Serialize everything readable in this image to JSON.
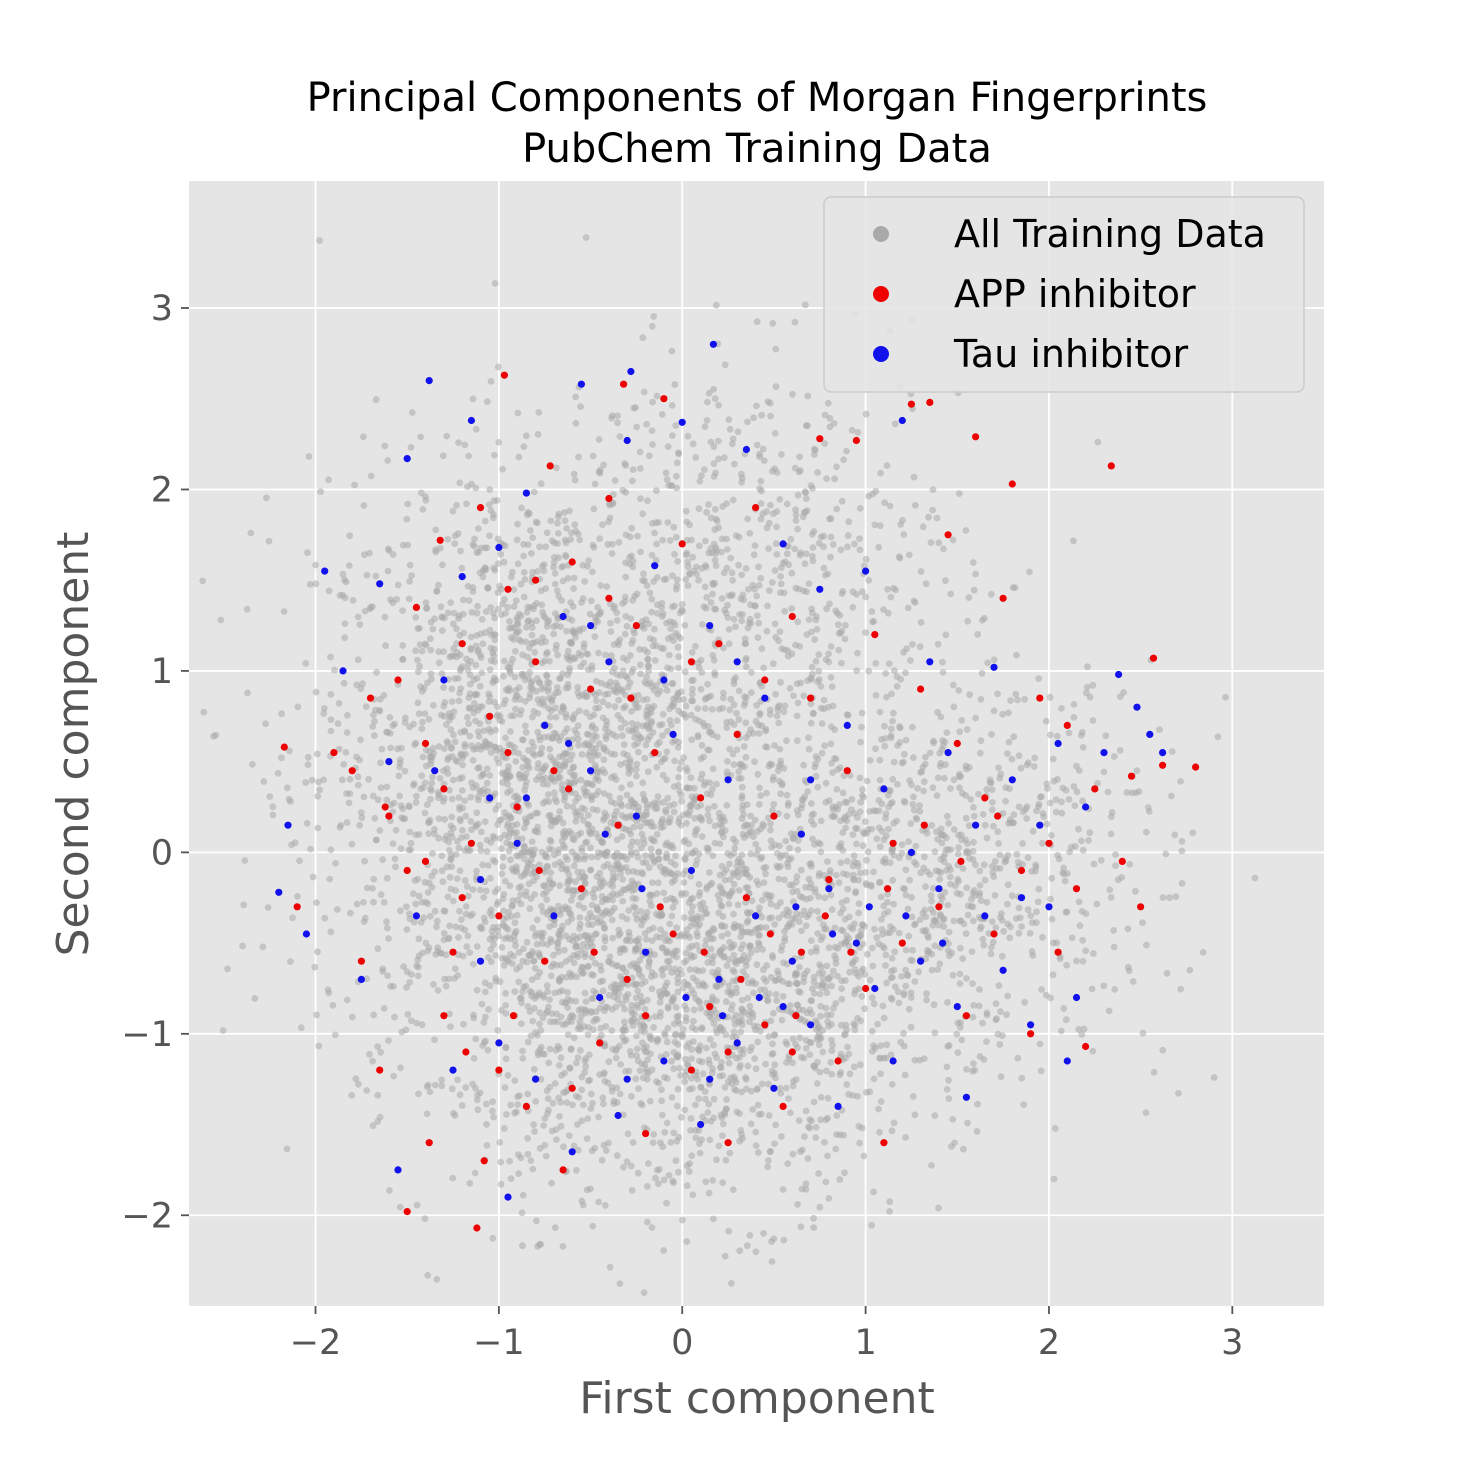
{
  "chart_data": {
    "type": "scatter",
    "title": [
      "Principal Components of Morgan Fingerprints",
      "PubChem Training Data"
    ],
    "xlabel": "First component",
    "ylabel": "Second component",
    "xlim": [
      -2.69,
      3.5
    ],
    "ylim": [
      -2.5,
      3.7
    ],
    "x_ticks": [
      -2,
      -1,
      0,
      1,
      2,
      3
    ],
    "y_ticks": [
      -2,
      -1,
      0,
      1,
      2,
      3
    ],
    "x_tick_labels": [
      "−2",
      "−1",
      "0",
      "1",
      "2",
      "3"
    ],
    "y_tick_labels": [
      "−2",
      "−1",
      "0",
      "1",
      "2",
      "3"
    ],
    "grid": true,
    "background": "#e5e5e5",
    "legend": {
      "placement": "upper right",
      "entries": [
        "All Training Data",
        "APP inhibitor",
        "Tau inhibitor"
      ]
    },
    "series": [
      {
        "name": "All Training Data",
        "color": "#a9a9a9",
        "distribution": "dense cloud, approx. 60000 points",
        "clusters": [
          {
            "center": [
              -0.75,
              0.45
            ],
            "spread": [
              0.62,
              0.82
            ],
            "weight": 0.45
          },
          {
            "center": [
              0.05,
              -0.8
            ],
            "spread": [
              0.62,
              0.58
            ],
            "weight": 0.28
          },
          {
            "center": [
              1.35,
              -0.1
            ],
            "spread": [
              0.65,
              0.55
            ],
            "weight": 0.17
          },
          {
            "center": [
              0.45,
              1.6
            ],
            "spread": [
              0.55,
              0.55
            ],
            "weight": 0.1
          }
        ]
      },
      {
        "name": "APP inhibitor",
        "color": "#ee0000",
        "points": [
          [
            -2.17,
            0.58
          ],
          [
            -2.1,
            -0.3
          ],
          [
            -1.9,
            0.55
          ],
          [
            -1.8,
            0.45
          ],
          [
            -1.75,
            -0.6
          ],
          [
            -1.7,
            0.85
          ],
          [
            -1.65,
            -1.2
          ],
          [
            -1.6,
            0.2
          ],
          [
            -1.55,
            0.95
          ],
          [
            -1.5,
            -0.1
          ],
          [
            -1.45,
            1.35
          ],
          [
            -1.4,
            0.6
          ],
          [
            -1.38,
            -1.6
          ],
          [
            -1.32,
            1.72
          ],
          [
            -1.3,
            0.35
          ],
          [
            -1.25,
            -0.55
          ],
          [
            -1.2,
            1.15
          ],
          [
            -1.18,
            -1.1
          ],
          [
            -1.15,
            0.05
          ],
          [
            -1.1,
            1.9
          ],
          [
            -1.08,
            -1.7
          ],
          [
            -1.05,
            0.75
          ],
          [
            -1.0,
            -0.35
          ],
          [
            -0.97,
            2.63
          ],
          [
            -0.95,
            1.45
          ],
          [
            -0.92,
            -0.9
          ],
          [
            -0.9,
            0.25
          ],
          [
            -0.85,
            -1.4
          ],
          [
            -0.8,
            1.05
          ],
          [
            -0.75,
            -0.6
          ],
          [
            -0.72,
            2.13
          ],
          [
            -0.7,
            0.45
          ],
          [
            -0.65,
            -1.75
          ],
          [
            -0.6,
            1.6
          ],
          [
            -0.55,
            -0.2
          ],
          [
            -0.5,
            0.9
          ],
          [
            -0.45,
            -1.05
          ],
          [
            -0.4,
            1.95
          ],
          [
            -0.35,
            0.15
          ],
          [
            -0.32,
            2.58
          ],
          [
            -0.3,
            -0.7
          ],
          [
            -0.25,
            1.25
          ],
          [
            -0.2,
            -1.55
          ],
          [
            -0.15,
            0.55
          ],
          [
            -0.1,
            2.5
          ],
          [
            -0.05,
            -0.45
          ],
          [
            0.0,
            1.7
          ],
          [
            0.05,
            -1.2
          ],
          [
            0.1,
            0.3
          ],
          [
            0.15,
            -0.85
          ],
          [
            0.2,
            1.15
          ],
          [
            0.25,
            -1.6
          ],
          [
            0.3,
            0.65
          ],
          [
            0.35,
            -0.25
          ],
          [
            0.4,
            1.9
          ],
          [
            0.45,
            -0.95
          ],
          [
            0.5,
            0.2
          ],
          [
            0.55,
            -1.4
          ],
          [
            0.6,
            1.3
          ],
          [
            0.65,
            -0.55
          ],
          [
            0.7,
            0.85
          ],
          [
            0.75,
            2.28
          ],
          [
            0.8,
            -0.15
          ],
          [
            0.85,
            -1.15
          ],
          [
            0.9,
            0.45
          ],
          [
            0.95,
            2.27
          ],
          [
            1.0,
            -0.75
          ],
          [
            1.05,
            1.2
          ],
          [
            1.1,
            -1.6
          ],
          [
            1.15,
            0.05
          ],
          [
            1.2,
            -0.5
          ],
          [
            1.25,
            2.47
          ],
          [
            1.3,
            0.9
          ],
          [
            1.35,
            2.48
          ],
          [
            1.4,
            -0.3
          ],
          [
            1.45,
            1.75
          ],
          [
            1.5,
            0.6
          ],
          [
            1.55,
            -0.9
          ],
          [
            1.6,
            2.29
          ],
          [
            1.65,
            0.3
          ],
          [
            1.7,
            -0.45
          ],
          [
            1.75,
            1.4
          ],
          [
            1.8,
            2.03
          ],
          [
            1.85,
            -0.1
          ],
          [
            1.9,
            -1.0
          ],
          [
            1.95,
            0.85
          ],
          [
            2.0,
            0.05
          ],
          [
            2.05,
            -0.55
          ],
          [
            2.1,
            0.7
          ],
          [
            2.15,
            -0.2
          ],
          [
            2.2,
            -1.07
          ],
          [
            2.25,
            0.35
          ],
          [
            2.34,
            2.13
          ],
          [
            2.4,
            -0.05
          ],
          [
            2.45,
            0.42
          ],
          [
            2.5,
            -0.3
          ],
          [
            2.57,
            1.07
          ],
          [
            2.62,
            0.48
          ],
          [
            2.8,
            0.47
          ],
          [
            -1.62,
            0.25
          ],
          [
            -1.4,
            -0.05
          ],
          [
            -1.2,
            -0.25
          ],
          [
            -0.95,
            0.55
          ],
          [
            -0.78,
            -0.1
          ],
          [
            -0.62,
            0.35
          ],
          [
            -0.48,
            -0.55
          ],
          [
            -0.28,
            0.85
          ],
          [
            -0.12,
            -0.3
          ],
          [
            0.12,
            -0.55
          ],
          [
            0.32,
            -0.7
          ],
          [
            0.48,
            -0.45
          ],
          [
            0.62,
            -0.9
          ],
          [
            0.78,
            -0.35
          ],
          [
            0.92,
            -0.55
          ],
          [
            1.12,
            -0.2
          ],
          [
            1.32,
            0.15
          ],
          [
            1.52,
            -0.05
          ],
          [
            1.72,
            0.2
          ],
          [
            -1.0,
            -1.2
          ],
          [
            -0.6,
            -1.3
          ],
          [
            -0.2,
            -0.9
          ],
          [
            0.25,
            -1.1
          ],
          [
            0.6,
            -1.1
          ],
          [
            -0.8,
            1.5
          ],
          [
            -0.4,
            1.4
          ],
          [
            0.05,
            1.05
          ],
          [
            0.45,
            0.95
          ],
          [
            -1.3,
            -0.9
          ],
          [
            -1.5,
            -1.98
          ],
          [
            -1.12,
            -2.07
          ]
        ]
      },
      {
        "name": "Tau inhibitor",
        "color": "#1111ee",
        "points": [
          [
            -2.2,
            -0.22
          ],
          [
            -2.15,
            0.15
          ],
          [
            -2.05,
            -0.45
          ],
          [
            -1.95,
            1.55
          ],
          [
            -1.85,
            1.0
          ],
          [
            -1.75,
            -0.7
          ],
          [
            -1.65,
            1.48
          ],
          [
            -1.6,
            0.5
          ],
          [
            -1.55,
            -1.75
          ],
          [
            -1.5,
            2.17
          ],
          [
            -1.45,
            -0.35
          ],
          [
            -1.38,
            2.6
          ],
          [
            -1.3,
            0.95
          ],
          [
            -1.25,
            -1.2
          ],
          [
            -1.2,
            1.52
          ],
          [
            -1.15,
            2.38
          ],
          [
            -1.1,
            -0.6
          ],
          [
            -1.05,
            0.3
          ],
          [
            -1.0,
            1.68
          ],
          [
            -0.95,
            -1.9
          ],
          [
            -0.9,
            0.05
          ],
          [
            -0.85,
            1.98
          ],
          [
            -0.8,
            -1.25
          ],
          [
            -0.75,
            0.7
          ],
          [
            -0.7,
            -0.35
          ],
          [
            -0.65,
            1.3
          ],
          [
            -0.6,
            -1.65
          ],
          [
            -0.55,
            2.58
          ],
          [
            -0.5,
            0.45
          ],
          [
            -0.45,
            -0.8
          ],
          [
            -0.4,
            1.05
          ],
          [
            -0.35,
            -1.45
          ],
          [
            -0.3,
            2.27
          ],
          [
            -0.28,
            2.65
          ],
          [
            -0.25,
            0.2
          ],
          [
            -0.2,
            -0.55
          ],
          [
            -0.15,
            1.58
          ],
          [
            -0.1,
            -1.15
          ],
          [
            -0.05,
            0.65
          ],
          [
            0.0,
            2.37
          ],
          [
            0.05,
            -0.1
          ],
          [
            0.1,
            -1.5
          ],
          [
            0.15,
            1.25
          ],
          [
            0.17,
            2.8
          ],
          [
            0.2,
            -0.7
          ],
          [
            0.25,
            0.4
          ],
          [
            0.3,
            -1.05
          ],
          [
            0.35,
            2.22
          ],
          [
            0.4,
            -0.35
          ],
          [
            0.45,
            0.85
          ],
          [
            0.5,
            -1.3
          ],
          [
            0.55,
            1.7
          ],
          [
            0.6,
            -0.6
          ],
          [
            0.65,
            0.1
          ],
          [
            0.7,
            -0.95
          ],
          [
            0.75,
            1.45
          ],
          [
            0.8,
            -0.2
          ],
          [
            0.85,
            -1.4
          ],
          [
            0.9,
            0.7
          ],
          [
            0.95,
            -0.5
          ],
          [
            1.0,
            1.55
          ],
          [
            1.05,
            -0.75
          ],
          [
            1.1,
            0.35
          ],
          [
            1.15,
            -1.15
          ],
          [
            1.2,
            2.38
          ],
          [
            1.25,
            0.0
          ],
          [
            1.3,
            -0.6
          ],
          [
            1.35,
            1.05
          ],
          [
            1.4,
            -0.2
          ],
          [
            1.45,
            0.55
          ],
          [
            1.5,
            -0.85
          ],
          [
            1.55,
            -1.35
          ],
          [
            1.6,
            0.15
          ],
          [
            1.65,
            -0.35
          ],
          [
            1.7,
            1.02
          ],
          [
            1.75,
            -0.65
          ],
          [
            1.8,
            0.4
          ],
          [
            1.85,
            -0.25
          ],
          [
            1.9,
            -0.95
          ],
          [
            1.95,
            0.15
          ],
          [
            2.0,
            -0.3
          ],
          [
            2.05,
            0.6
          ],
          [
            2.1,
            -1.15
          ],
          [
            2.15,
            -0.8
          ],
          [
            2.2,
            0.25
          ],
          [
            2.3,
            0.55
          ],
          [
            2.38,
            0.98
          ],
          [
            2.48,
            0.8
          ],
          [
            2.55,
            0.65
          ],
          [
            2.62,
            0.55
          ],
          [
            -1.35,
            0.45
          ],
          [
            -1.1,
            -0.15
          ],
          [
            -0.85,
            0.3
          ],
          [
            -0.62,
            0.6
          ],
          [
            -0.42,
            0.1
          ],
          [
            -0.22,
            -0.2
          ],
          [
            0.02,
            -0.8
          ],
          [
            0.22,
            -0.9
          ],
          [
            0.42,
            -0.8
          ],
          [
            0.62,
            -0.3
          ],
          [
            0.82,
            -0.45
          ],
          [
            1.02,
            -0.3
          ],
          [
            1.22,
            -0.35
          ],
          [
            1.42,
            -0.5
          ],
          [
            -0.5,
            1.25
          ],
          [
            -0.1,
            0.95
          ],
          [
            0.3,
            1.05
          ],
          [
            0.7,
            0.4
          ],
          [
            -1.0,
            -1.05
          ],
          [
            -0.3,
            -1.25
          ],
          [
            0.15,
            -1.25
          ],
          [
            0.55,
            -0.85
          ]
        ]
      }
    ]
  }
}
